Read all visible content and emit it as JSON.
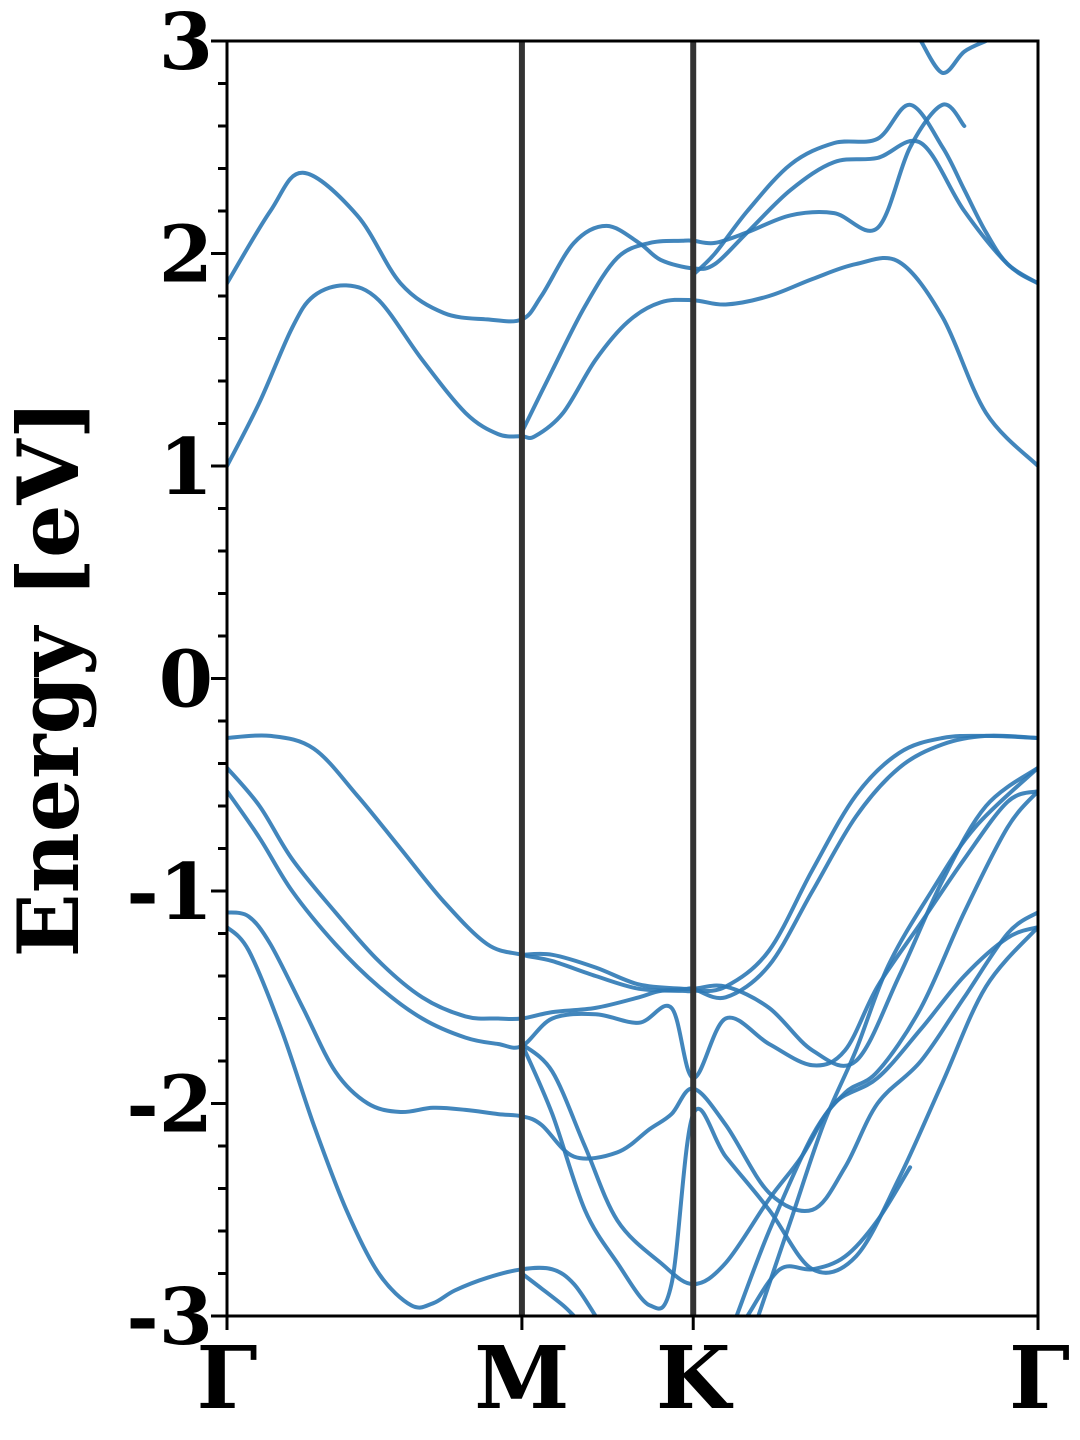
{
  "chart_data": {
    "type": "line",
    "title": "",
    "xlabel": "",
    "ylabel": "Energy [eV]",
    "ylim": [
      -3,
      3
    ],
    "y_ticks": [
      -3,
      -2,
      -1,
      0,
      1,
      2,
      3
    ],
    "y_tick_labels": [
      "-3",
      "-2",
      "-1",
      "0",
      "1",
      "2",
      "3"
    ],
    "x_range": [
      0,
      3.74
    ],
    "high_symmetry_points": [
      {
        "label": "Γ",
        "x": 0
      },
      {
        "label": "M",
        "x": 1.36
      },
      {
        "label": "K",
        "x": 2.15
      },
      {
        "label": "Γ",
        "x": 3.74
      }
    ],
    "grid": false,
    "legend": "none",
    "colors": {
      "band": "#2e79b5",
      "kline": "#333333"
    },
    "series": [
      {
        "x": [
          0,
          0.2,
          0.35,
          0.6,
          0.8,
          1.0,
          1.2,
          1.36,
          1.45,
          1.6,
          1.75,
          1.9,
          2.0,
          2.15,
          2.25,
          2.4,
          2.6,
          2.8,
          3.0,
          3.2,
          3.4,
          3.6,
          3.74
        ],
        "y": [
          1.86,
          2.2,
          2.38,
          2.18,
          1.86,
          1.72,
          1.69,
          1.69,
          1.8,
          2.05,
          2.13,
          2.05,
          1.97,
          1.93,
          1.95,
          2.1,
          2.3,
          2.43,
          2.45,
          2.52,
          2.2,
          1.95,
          1.86
        ]
      },
      {
        "x": [
          0,
          0.15,
          0.3,
          0.4,
          0.55,
          0.7,
          0.9,
          1.1,
          1.25,
          1.36,
          1.42,
          1.55,
          1.7,
          1.85,
          2.0,
          2.15,
          2.3,
          2.5,
          2.7,
          2.9,
          3.1,
          3.3,
          3.5,
          3.74
        ],
        "y": [
          1.0,
          1.3,
          1.65,
          1.8,
          1.85,
          1.78,
          1.5,
          1.25,
          1.15,
          1.14,
          1.14,
          1.25,
          1.5,
          1.68,
          1.77,
          1.78,
          1.76,
          1.8,
          1.88,
          1.95,
          1.96,
          1.7,
          1.25,
          1.0
        ]
      },
      {
        "x": [
          1.36,
          1.5,
          1.65,
          1.8,
          1.95,
          2.1,
          2.15,
          2.25,
          2.4,
          2.6,
          2.8,
          3.0,
          3.15,
          3.3,
          3.4
        ],
        "y": [
          1.16,
          1.45,
          1.75,
          1.98,
          2.05,
          2.06,
          2.06,
          2.05,
          2.1,
          2.18,
          2.19,
          2.12,
          2.5,
          2.7,
          2.6
        ]
      },
      {
        "x": [
          2.15,
          2.25,
          2.4,
          2.6,
          2.8,
          3.0,
          3.15,
          3.3,
          3.4,
          3.5,
          3.6,
          3.74
        ],
        "y": [
          1.9,
          2.0,
          2.2,
          2.42,
          2.52,
          2.54,
          2.7,
          2.5,
          2.3,
          2.1,
          1.95,
          1.86
        ]
      },
      {
        "x": [
          3.2,
          3.3,
          3.4,
          3.5
        ],
        "y": [
          3.0,
          2.85,
          2.95,
          3.0
        ]
      },
      {
        "x": [
          0,
          0.2,
          0.4,
          0.6,
          0.8,
          1.0,
          1.2,
          1.36,
          1.5,
          1.7,
          1.9,
          2.1,
          2.15,
          2.3,
          2.5,
          2.7,
          2.9,
          3.1,
          3.3,
          3.5,
          3.74
        ],
        "y": [
          -0.28,
          -0.27,
          -0.33,
          -0.55,
          -0.8,
          -1.05,
          -1.25,
          -1.3,
          -1.33,
          -1.4,
          -1.46,
          -1.47,
          -1.47,
          -1.45,
          -1.28,
          -0.9,
          -0.55,
          -0.35,
          -0.28,
          -0.27,
          -0.28
        ]
      },
      {
        "x": [
          1.36,
          1.5,
          1.7,
          1.9,
          2.1,
          2.15,
          2.3,
          2.5,
          2.7,
          2.9,
          3.1,
          3.3,
          3.5,
          3.74
        ],
        "y": [
          -1.3,
          -1.3,
          -1.36,
          -1.44,
          -1.46,
          -1.46,
          -1.5,
          -1.35,
          -1.0,
          -0.65,
          -0.42,
          -0.31,
          -0.27,
          -0.28
        ]
      },
      {
        "x": [
          0,
          0.15,
          0.3,
          0.5,
          0.7,
          0.9,
          1.1,
          1.25,
          1.36,
          1.5,
          1.7,
          1.9,
          2.0,
          2.15,
          2.3,
          2.5,
          2.7,
          2.9,
          3.1,
          3.3,
          3.5,
          3.74
        ],
        "y": [
          -0.42,
          -0.6,
          -0.85,
          -1.1,
          -1.33,
          -1.5,
          -1.59,
          -1.6,
          -1.6,
          -1.57,
          -1.55,
          -1.5,
          -1.47,
          -1.46,
          -1.45,
          -1.55,
          -1.75,
          -1.8,
          -1.4,
          -0.95,
          -0.6,
          -0.42
        ]
      },
      {
        "x": [
          0,
          0.15,
          0.3,
          0.5,
          0.7,
          0.9,
          1.1,
          1.25,
          1.36,
          1.5,
          1.7,
          1.9,
          2.05,
          2.15,
          2.3,
          2.5,
          2.7,
          2.85,
          3.0,
          3.2,
          3.4,
          3.6,
          3.74
        ],
        "y": [
          -0.53,
          -0.75,
          -1.0,
          -1.25,
          -1.45,
          -1.6,
          -1.69,
          -1.72,
          -1.73,
          -1.6,
          -1.58,
          -1.62,
          -1.55,
          -1.88,
          -1.6,
          -1.72,
          -1.82,
          -1.75,
          -1.45,
          -1.15,
          -0.85,
          -0.58,
          -0.53
        ]
      },
      {
        "x": [
          0,
          0.1,
          0.2,
          0.35,
          0.5,
          0.65,
          0.8,
          0.95,
          1.1,
          1.25,
          1.36,
          1.45,
          1.6,
          1.8,
          1.95,
          2.05,
          2.15,
          2.3,
          2.5,
          2.7,
          2.85,
          3.0,
          3.2,
          3.4,
          3.6,
          3.74
        ],
        "y": [
          -1.1,
          -1.12,
          -1.25,
          -1.55,
          -1.85,
          -2.0,
          -2.04,
          -2.02,
          -2.03,
          -2.05,
          -2.06,
          -2.1,
          -2.25,
          -2.23,
          -2.12,
          -2.05,
          -1.93,
          -2.1,
          -2.42,
          -2.5,
          -2.3,
          -2.0,
          -1.8,
          -1.5,
          -1.2,
          -1.1
        ]
      },
      {
        "x": [
          0,
          0.1,
          0.25,
          0.4,
          0.55,
          0.7,
          0.85,
          0.95,
          1.05,
          1.2,
          1.36,
          1.5,
          1.6,
          1.7
        ],
        "y": [
          -1.17,
          -1.28,
          -1.65,
          -2.1,
          -2.5,
          -2.8,
          -2.95,
          -2.94,
          -2.88,
          -2.82,
          -2.78,
          -2.78,
          -2.85,
          -3.0
        ]
      },
      {
        "x": [
          1.36,
          1.45,
          1.55,
          1.6
        ],
        "y": [
          -2.8,
          -2.87,
          -2.95,
          -3.0
        ]
      },
      {
        "x": [
          1.36,
          1.5,
          1.65,
          1.8,
          2.0,
          2.15,
          2.3,
          2.5,
          2.65,
          2.8,
          3.0,
          3.2,
          3.4,
          3.6,
          3.74
        ],
        "y": [
          -1.72,
          -1.85,
          -2.2,
          -2.55,
          -2.75,
          -2.85,
          -2.75,
          -2.45,
          -2.25,
          -2.0,
          -1.88,
          -1.65,
          -1.4,
          -1.22,
          -1.17
        ]
      },
      {
        "x": [
          1.36,
          1.5,
          1.65,
          1.8,
          1.95,
          2.05,
          2.15,
          2.3,
          2.5,
          2.7,
          2.9,
          3.1,
          3.3,
          3.5,
          3.74
        ],
        "y": [
          -1.72,
          -2.05,
          -2.5,
          -2.75,
          -2.95,
          -2.85,
          -2.05,
          -2.25,
          -2.5,
          -2.78,
          -2.72,
          -2.35,
          -1.9,
          -1.45,
          -1.17
        ]
      },
      {
        "x": [
          2.4,
          2.55,
          2.7,
          2.85,
          3.0,
          3.15
        ],
        "y": [
          -3.0,
          -2.78,
          -2.78,
          -2.72,
          -2.55,
          -2.3
        ]
      },
      {
        "x": [
          2.35,
          2.5,
          2.7,
          2.85,
          3.0,
          3.2,
          3.4,
          3.6,
          3.74
        ],
        "y": [
          -3.0,
          -2.6,
          -2.15,
          -1.95,
          -1.85,
          -1.55,
          -1.1,
          -0.7,
          -0.53
        ]
      },
      {
        "x": [
          2.45,
          2.6,
          2.75,
          2.9,
          3.05,
          3.25,
          3.45,
          3.74
        ],
        "y": [
          -3.0,
          -2.55,
          -2.1,
          -1.75,
          -1.35,
          -1.0,
          -0.7,
          -0.42
        ]
      }
    ]
  }
}
